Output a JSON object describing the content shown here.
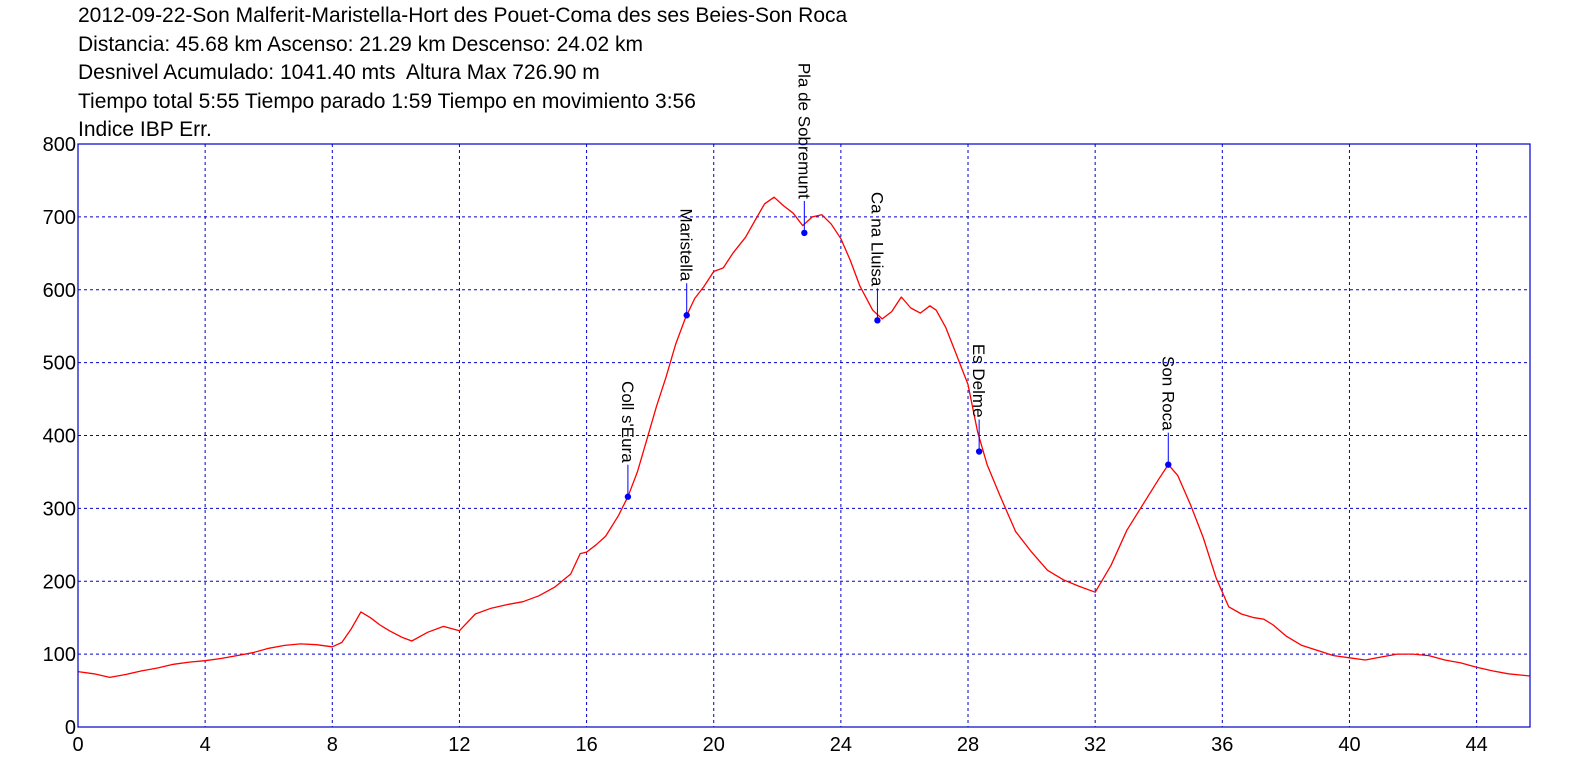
{
  "header": {
    "lines": [
      "2012-09-22-Son Malferit-Maristella-Hort des Pouet-Coma des ses Beies-Son Roca",
      "Distancia: 45.68 km Ascenso: 21.29 km Descenso: 24.02 km",
      "Desnivel Acumulado: 1041.40 mts  Altura Max 726.90 m",
      "Tiempo total 5:55 Tiempo parado 1:59 Tiempo en movimiento 3:56",
      "Indice IBP Err."
    ]
  },
  "chart_data": {
    "type": "line",
    "title": "2012-09-22-Son Malferit-Maristella-Hort des Pouet-Coma des ses Beies-Son Roca",
    "xlabel": "",
    "ylabel": "",
    "xlim": [
      0,
      45.68
    ],
    "ylim": [
      0,
      800
    ],
    "x_ticks": [
      0,
      4,
      8,
      12,
      16,
      20,
      24,
      28,
      32,
      36,
      40,
      44
    ],
    "y_ticks": [
      0,
      100,
      200,
      300,
      400,
      500,
      600,
      700,
      800
    ],
    "grid": true,
    "colors": {
      "line": "#ff0000",
      "grid": "#0000cc",
      "frame": "#0000cc",
      "waypoint": "#0000ff"
    },
    "series": [
      {
        "points": [
          [
            0,
            76
          ],
          [
            0.5,
            73
          ],
          [
            1,
            68
          ],
          [
            1.5,
            72
          ],
          [
            2,
            77
          ],
          [
            2.5,
            81
          ],
          [
            3,
            86
          ],
          [
            3.5,
            89
          ],
          [
            4,
            91
          ],
          [
            4.5,
            94
          ],
          [
            5,
            98
          ],
          [
            5.5,
            102
          ],
          [
            6,
            108
          ],
          [
            6.5,
            112
          ],
          [
            7,
            114
          ],
          [
            7.5,
            113
          ],
          [
            8,
            110
          ],
          [
            8.3,
            116
          ],
          [
            8.6,
            135
          ],
          [
            8.9,
            158
          ],
          [
            9.2,
            150
          ],
          [
            9.5,
            140
          ],
          [
            9.8,
            132
          ],
          [
            10.2,
            123
          ],
          [
            10.5,
            118
          ],
          [
            11,
            130
          ],
          [
            11.5,
            138
          ],
          [
            12,
            132
          ],
          [
            12.5,
            155
          ],
          [
            13,
            163
          ],
          [
            13.5,
            168
          ],
          [
            14,
            172
          ],
          [
            14.5,
            180
          ],
          [
            15,
            192
          ],
          [
            15.5,
            210
          ],
          [
            15.8,
            238
          ],
          [
            16,
            240
          ],
          [
            16.3,
            250
          ],
          [
            16.6,
            262
          ],
          [
            17,
            290
          ],
          [
            17.3,
            316
          ],
          [
            17.6,
            350
          ],
          [
            17.9,
            395
          ],
          [
            18.2,
            440
          ],
          [
            18.5,
            480
          ],
          [
            18.8,
            525
          ],
          [
            19.1,
            560
          ],
          [
            19.4,
            588
          ],
          [
            19.7,
            605
          ],
          [
            20,
            625
          ],
          [
            20.3,
            630
          ],
          [
            20.6,
            650
          ],
          [
            21,
            672
          ],
          [
            21.3,
            695
          ],
          [
            21.6,
            718
          ],
          [
            21.9,
            727
          ],
          [
            22.2,
            715
          ],
          [
            22.5,
            705
          ],
          [
            22.8,
            688
          ],
          [
            23.1,
            700
          ],
          [
            23.4,
            703
          ],
          [
            23.7,
            690
          ],
          [
            24,
            670
          ],
          [
            24.3,
            640
          ],
          [
            24.6,
            605
          ],
          [
            25,
            572
          ],
          [
            25.3,
            560
          ],
          [
            25.6,
            570
          ],
          [
            25.9,
            590
          ],
          [
            26.2,
            575
          ],
          [
            26.5,
            568
          ],
          [
            26.8,
            578
          ],
          [
            27,
            572
          ],
          [
            27.3,
            548
          ],
          [
            27.6,
            515
          ],
          [
            28,
            470
          ],
          [
            28.3,
            405
          ],
          [
            28.6,
            360
          ],
          [
            29,
            318
          ],
          [
            29.5,
            268
          ],
          [
            30,
            240
          ],
          [
            30.5,
            215
          ],
          [
            31,
            202
          ],
          [
            31.5,
            193
          ],
          [
            32,
            185
          ],
          [
            32.5,
            222
          ],
          [
            33,
            270
          ],
          [
            33.5,
            305
          ],
          [
            34,
            340
          ],
          [
            34.3,
            360
          ],
          [
            34.6,
            345
          ],
          [
            35,
            305
          ],
          [
            35.4,
            260
          ],
          [
            35.8,
            205
          ],
          [
            36.2,
            165
          ],
          [
            36.6,
            155
          ],
          [
            37,
            150
          ],
          [
            37.3,
            148
          ],
          [
            37.6,
            140
          ],
          [
            38,
            125
          ],
          [
            38.5,
            112
          ],
          [
            39,
            105
          ],
          [
            39.5,
            98
          ],
          [
            40,
            95
          ],
          [
            40.5,
            92
          ],
          [
            41,
            96
          ],
          [
            41.5,
            100
          ],
          [
            42,
            100
          ],
          [
            42.5,
            98
          ],
          [
            43,
            92
          ],
          [
            43.5,
            88
          ],
          [
            44,
            82
          ],
          [
            44.5,
            77
          ],
          [
            45,
            73
          ],
          [
            45.68,
            70
          ]
        ]
      }
    ],
    "waypoints": [
      {
        "label": "Coll s'Eura",
        "x": 17.3,
        "y": 316
      },
      {
        "label": "Maristella",
        "x": 19.15,
        "y": 565
      },
      {
        "label": "Pla de Sobremunt",
        "x": 22.85,
        "y": 678
      },
      {
        "label": "Ca na Lluisa",
        "x": 25.15,
        "y": 558
      },
      {
        "label": "Es Delme",
        "x": 28.35,
        "y": 378
      },
      {
        "label": "Son Roca",
        "x": 34.3,
        "y": 360
      }
    ]
  }
}
